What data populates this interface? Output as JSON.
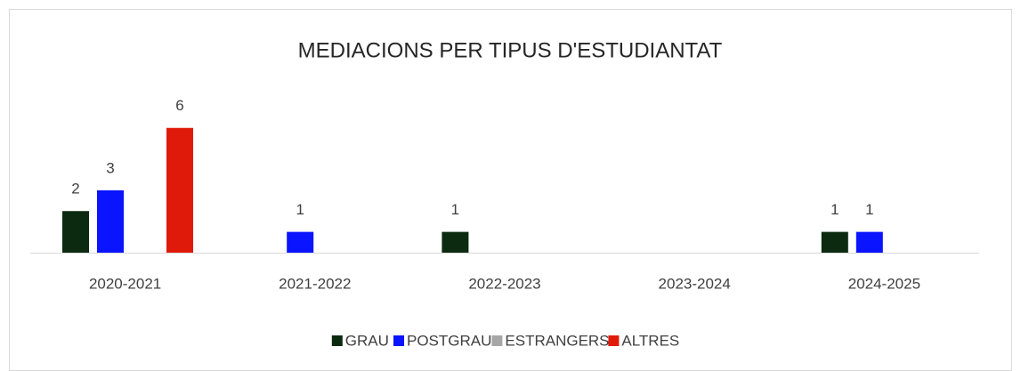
{
  "chart_data": {
    "type": "bar",
    "title": "MEDIACIONS PER TIPUS D'ESTUDIANTAT",
    "categories": [
      "2020-2021",
      "2021-2022",
      "2022-2023",
      "2023-2024",
      "2024-2025"
    ],
    "series": [
      {
        "name": "GRAU",
        "color": "#0c2a10",
        "values": [
          2,
          null,
          1,
          null,
          1
        ]
      },
      {
        "name": "POSTGRAU",
        "color": "#0a14ff",
        "values": [
          3,
          1,
          null,
          null,
          1
        ]
      },
      {
        "name": "ESTRANGERS",
        "color": "#a6a6a6",
        "values": [
          null,
          null,
          null,
          null,
          null
        ]
      },
      {
        "name": "ALTRES",
        "color": "#e01a0a",
        "values": [
          6,
          null,
          null,
          null,
          null
        ]
      }
    ],
    "ylim": [
      0,
      8
    ],
    "legend": "bottom"
  }
}
